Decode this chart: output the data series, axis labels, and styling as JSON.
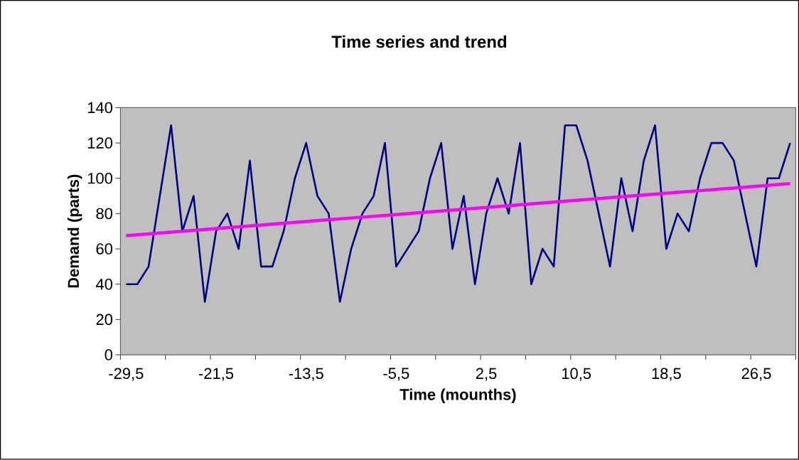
{
  "chart_data": {
    "type": "line",
    "title": "Time series and trend",
    "xlabel": "Time (mounths)",
    "ylabel": "Demand (parts)",
    "categories": [
      "-29,5",
      null,
      null,
      null,
      null,
      null,
      null,
      null,
      "-21,5",
      null,
      null,
      null,
      null,
      null,
      null,
      null,
      "-13,5",
      null,
      null,
      null,
      null,
      null,
      null,
      null,
      "-5,5",
      null,
      null,
      null,
      null,
      null,
      null,
      null,
      "2,5",
      null,
      null,
      null,
      null,
      null,
      null,
      null,
      "10,5",
      null,
      null,
      null,
      null,
      null,
      null,
      null,
      "18,5",
      null,
      null,
      null,
      null,
      null,
      null,
      null,
      "26,5",
      null,
      null,
      null
    ],
    "series": [
      {
        "color": "#000080",
        "values": [
          40,
          40,
          50,
          90,
          130,
          70,
          90,
          30,
          70,
          80,
          60,
          110,
          50,
          50,
          70,
          100,
          120,
          90,
          80,
          30,
          60,
          80,
          90,
          120,
          50,
          60,
          70,
          100,
          120,
          60,
          90,
          40,
          80,
          100,
          80,
          120,
          40,
          60,
          50,
          130,
          130,
          110,
          80,
          50,
          100,
          70,
          110,
          130,
          60,
          80,
          70,
          100,
          120,
          120,
          110,
          80,
          50,
          100,
          100,
          120
        ]
      },
      {
        "color": "#ff00ff",
        "values": [
          67.5,
          68,
          68.5,
          69,
          69.5,
          70,
          70.5,
          71,
          71.5,
          72,
          72.5,
          73,
          73.5,
          74,
          74.5,
          75,
          75.5,
          76,
          76.5,
          77,
          77.5,
          78,
          78.5,
          79,
          79.5,
          80,
          80.5,
          81,
          81.5,
          82,
          82.5,
          83,
          83.5,
          84,
          84.5,
          85,
          85.5,
          86,
          86.5,
          87,
          87.5,
          88,
          88.5,
          89,
          89.5,
          90,
          90.5,
          91,
          91.5,
          92,
          92.5,
          93,
          93.5,
          94,
          94.5,
          95,
          95.5,
          96,
          96.5,
          97
        ]
      }
    ],
    "ylim": [
      0,
      140
    ],
    "yticks": [
      0,
      20,
      40,
      60,
      80,
      100,
      120,
      140
    ],
    "marker": "none",
    "line_style": "solid"
  }
}
